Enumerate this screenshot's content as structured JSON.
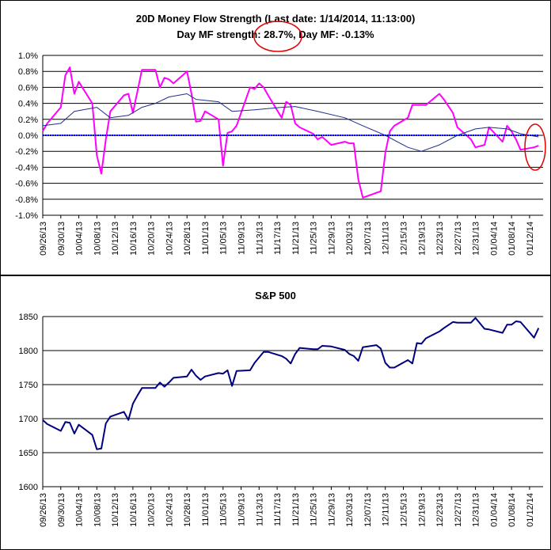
{
  "chart_data": [
    {
      "type": "line",
      "title": "20D Money Flow Strength (Last date: 1/14/2014, 11:13:00)",
      "subtitle": "Day MF strength: 28.7%, Day MF: -0.13%",
      "annotation": "red circles highlight \"28.7%\" and the last data points",
      "xlabel": "",
      "ylabel": "",
      "ylim": [
        -1.0,
        1.0
      ],
      "y_ticks": [
        "1.0%",
        "0.8%",
        "0.6%",
        "0.4%",
        "0.2%",
        "0.0%",
        "-0.2%",
        "-0.4%",
        "-0.6%",
        "-0.8%",
        "-1.0%"
      ],
      "x_ticks": [
        "09/26/13",
        "09/30/13",
        "10/04/13",
        "10/08/13",
        "10/12/13",
        "10/16/13",
        "10/20/13",
        "10/24/13",
        "10/28/13",
        "11/01/13",
        "11/05/13",
        "11/09/13",
        "11/13/13",
        "11/17/13",
        "11/21/13",
        "11/25/13",
        "11/29/13",
        "12/03/13",
        "12/07/13",
        "12/11/13",
        "12/15/13",
        "12/19/13",
        "12/23/13",
        "12/27/13",
        "12/31/13",
        "01/04/14",
        "01/08/14",
        "01/12/14"
      ],
      "x_start": "2013-09-26",
      "grid": "horizontal",
      "series": [
        {
          "color": "#ff00ff",
          "width": 2,
          "x": [
            "2013-09-26",
            "2013-09-27",
            "2013-09-30",
            "2013-10-01",
            "2013-10-02",
            "2013-10-03",
            "2013-10-04",
            "2013-10-07",
            "2013-10-08",
            "2013-10-09",
            "2013-10-10",
            "2013-10-11",
            "2013-10-14",
            "2013-10-15",
            "2013-10-16",
            "2013-10-17",
            "2013-10-18",
            "2013-10-21",
            "2013-10-22",
            "2013-10-23",
            "2013-10-24",
            "2013-10-25",
            "2013-10-28",
            "2013-10-29",
            "2013-10-30",
            "2013-10-31",
            "2013-11-01",
            "2013-11-04",
            "2013-11-05",
            "2013-11-06",
            "2013-11-07",
            "2013-11-08",
            "2013-11-11",
            "2013-11-12",
            "2013-11-13",
            "2013-11-14",
            "2013-11-15",
            "2013-11-18",
            "2013-11-19",
            "2013-11-20",
            "2013-11-21",
            "2013-11-22",
            "2013-11-25",
            "2013-11-26",
            "2013-11-27",
            "2013-11-29",
            "2013-12-02",
            "2013-12-03",
            "2013-12-04",
            "2013-12-05",
            "2013-12-06",
            "2013-12-09",
            "2013-12-10",
            "2013-12-11",
            "2013-12-12",
            "2013-12-13",
            "2013-12-16",
            "2013-12-17",
            "2013-12-18",
            "2013-12-19",
            "2013-12-20",
            "2013-12-23",
            "2013-12-24",
            "2013-12-26",
            "2013-12-27",
            "2013-12-30",
            "2013-12-31",
            "2014-01-02",
            "2014-01-03",
            "2014-01-06",
            "2014-01-07",
            "2014-01-08",
            "2014-01-09",
            "2014-01-10",
            "2014-01-13",
            "2014-01-14"
          ],
          "values": [
            0.05,
            0.15,
            0.35,
            0.75,
            0.85,
            0.52,
            0.67,
            0.4,
            -0.25,
            -0.48,
            -0.05,
            0.3,
            0.5,
            0.52,
            0.28,
            0.55,
            0.82,
            0.82,
            0.6,
            0.72,
            0.7,
            0.65,
            0.8,
            0.52,
            0.17,
            0.18,
            0.3,
            0.2,
            -0.38,
            0.03,
            0.05,
            0.12,
            0.6,
            0.58,
            0.65,
            0.6,
            0.5,
            0.22,
            0.42,
            0.38,
            0.15,
            0.1,
            0.02,
            -0.05,
            -0.02,
            -0.12,
            -0.08,
            -0.1,
            -0.1,
            -0.55,
            -0.78,
            -0.72,
            -0.7,
            -0.22,
            0.05,
            0.12,
            0.22,
            0.38,
            0.38,
            0.38,
            0.38,
            0.52,
            0.45,
            0.28,
            0.1,
            -0.05,
            -0.15,
            -0.12,
            0.1,
            -0.08,
            0.12,
            0.05,
            -0.05,
            -0.18,
            -0.15,
            -0.13
          ]
        },
        {
          "color": "#1f2f8a",
          "width": 1,
          "x": [
            "2013-09-26",
            "2013-09-30",
            "2013-10-03",
            "2013-10-08",
            "2013-10-11",
            "2013-10-15",
            "2013-10-18",
            "2013-10-21",
            "2013-10-24",
            "2013-10-28",
            "2013-10-30",
            "2013-11-04",
            "2013-11-07",
            "2013-11-12",
            "2013-11-18",
            "2013-11-21",
            "2013-11-26",
            "2013-12-02",
            "2013-12-06",
            "2013-12-11",
            "2013-12-16",
            "2013-12-19",
            "2013-12-23",
            "2013-12-27",
            "2013-12-31",
            "2014-01-03",
            "2014-01-07",
            "2014-01-10",
            "2014-01-14"
          ],
          "values": [
            0.12,
            0.15,
            0.3,
            0.35,
            0.22,
            0.25,
            0.35,
            0.4,
            0.48,
            0.52,
            0.45,
            0.42,
            0.3,
            0.32,
            0.35,
            0.36,
            0.3,
            0.22,
            0.12,
            0.0,
            -0.15,
            -0.2,
            -0.12,
            0.0,
            0.08,
            0.1,
            0.08,
            0.02,
            -0.02
          ]
        },
        {
          "color": "#0000ff",
          "width": 2,
          "dashed": true,
          "x": [
            "2013-09-26",
            "2014-01-14"
          ],
          "values": [
            0.0,
            0.0
          ]
        }
      ]
    },
    {
      "type": "line",
      "title": "S&P 500",
      "xlabel": "",
      "ylabel": "",
      "ylim": [
        1600,
        1850
      ],
      "y_ticks": [
        "1850",
        "1800",
        "1750",
        "1700",
        "1650",
        "1600"
      ],
      "x_ticks": [
        "09/26/13",
        "09/30/13",
        "10/04/13",
        "10/08/13",
        "10/12/13",
        "10/16/13",
        "10/20/13",
        "10/24/13",
        "10/28/13",
        "11/01/13",
        "11/05/13",
        "11/09/13",
        "11/13/13",
        "11/17/13",
        "11/21/13",
        "11/25/13",
        "11/29/13",
        "12/03/13",
        "12/07/13",
        "12/11/13",
        "12/15/13",
        "12/19/13",
        "12/23/13",
        "12/27/13",
        "12/31/13",
        "01/04/14",
        "01/08/14",
        "01/12/14"
      ],
      "x_start": "2013-09-26",
      "grid": "horizontal",
      "series": [
        {
          "color": "#000080",
          "width": 2,
          "x": [
            "2013-09-26",
            "2013-09-27",
            "2013-09-30",
            "2013-10-01",
            "2013-10-02",
            "2013-10-03",
            "2013-10-04",
            "2013-10-07",
            "2013-10-08",
            "2013-10-09",
            "2013-10-10",
            "2013-10-11",
            "2013-10-14",
            "2013-10-15",
            "2013-10-16",
            "2013-10-17",
            "2013-10-18",
            "2013-10-21",
            "2013-10-22",
            "2013-10-23",
            "2013-10-24",
            "2013-10-25",
            "2013-10-28",
            "2013-10-29",
            "2013-10-30",
            "2013-10-31",
            "2013-11-01",
            "2013-11-04",
            "2013-11-05",
            "2013-11-06",
            "2013-11-07",
            "2013-11-08",
            "2013-11-11",
            "2013-11-12",
            "2013-11-13",
            "2013-11-14",
            "2013-11-15",
            "2013-11-18",
            "2013-11-19",
            "2013-11-20",
            "2013-11-21",
            "2013-11-22",
            "2013-11-25",
            "2013-11-26",
            "2013-11-27",
            "2013-11-29",
            "2013-12-02",
            "2013-12-03",
            "2013-12-04",
            "2013-12-05",
            "2013-12-06",
            "2013-12-09",
            "2013-12-10",
            "2013-12-11",
            "2013-12-12",
            "2013-12-13",
            "2013-12-16",
            "2013-12-17",
            "2013-12-18",
            "2013-12-19",
            "2013-12-20",
            "2013-12-23",
            "2013-12-24",
            "2013-12-26",
            "2013-12-27",
            "2013-12-30",
            "2013-12-31",
            "2014-01-02",
            "2014-01-03",
            "2014-01-06",
            "2014-01-07",
            "2014-01-08",
            "2014-01-09",
            "2014-01-10",
            "2014-01-13",
            "2014-01-14"
          ],
          "values": [
            1698,
            1692,
            1682,
            1695,
            1694,
            1678,
            1691,
            1676,
            1655,
            1656,
            1693,
            1703,
            1710,
            1698,
            1722,
            1734,
            1745,
            1745,
            1753,
            1747,
            1753,
            1760,
            1762,
            1772,
            1763,
            1757,
            1762,
            1767,
            1766,
            1771,
            1748,
            1770,
            1771,
            1782,
            1790,
            1798,
            1798,
            1792,
            1788,
            1781,
            1795,
            1804,
            1802,
            1802,
            1807,
            1806,
            1801,
            1795,
            1792,
            1785,
            1805,
            1808,
            1803,
            1782,
            1775,
            1775,
            1786,
            1781,
            1811,
            1810,
            1818,
            1828,
            1833,
            1842,
            1841,
            1841,
            1848,
            1832,
            1831,
            1826,
            1838,
            1838,
            1843,
            1842,
            1819,
            1833
          ]
        }
      ]
    }
  ]
}
